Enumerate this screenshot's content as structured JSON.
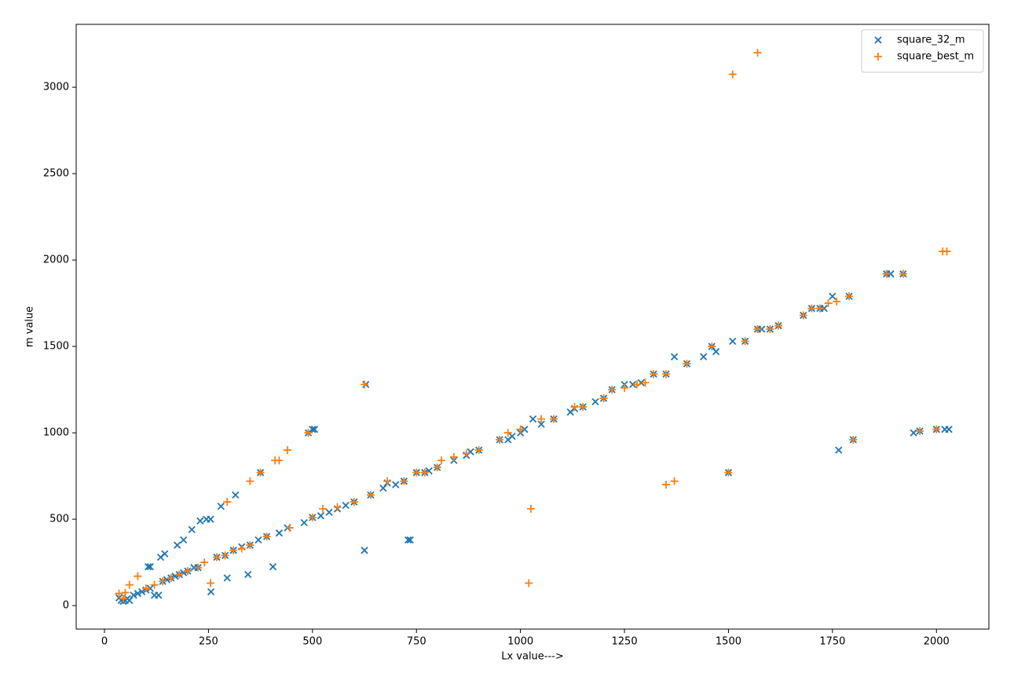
{
  "chart_data": {
    "type": "scatter",
    "xlabel": "Lx value--->",
    "ylabel": "m value",
    "xlim": [
      -68,
      2126
    ],
    "ylim": [
      -136,
      3364
    ],
    "xticks": [
      0,
      250,
      500,
      750,
      1000,
      1250,
      1500,
      1750,
      2000
    ],
    "yticks": [
      0,
      500,
      1000,
      1500,
      2000,
      2500,
      3000
    ],
    "grid": false,
    "legend": "upper right",
    "series": [
      {
        "name": "square_32_m",
        "color": "#1f77b4",
        "marker": "x",
        "x": [
          35,
          40,
          45,
          50,
          55,
          60,
          70,
          80,
          90,
          100,
          110,
          120,
          130,
          140,
          150,
          160,
          170,
          180,
          190,
          200,
          215,
          225,
          256,
          295,
          345,
          405,
          105,
          110,
          135,
          145,
          175,
          190,
          210,
          230,
          245,
          255,
          280,
          315,
          375,
          490,
          500,
          505,
          628,
          270,
          290,
          310,
          330,
          350,
          370,
          390,
          420,
          440,
          480,
          500,
          520,
          540,
          560,
          580,
          600,
          640,
          670,
          680,
          700,
          720,
          750,
          770,
          780,
          800,
          840,
          870,
          880,
          900,
          950,
          970,
          980,
          1000,
          1010,
          1030,
          1050,
          1080,
          1120,
          1130,
          1150,
          1180,
          1200,
          1220,
          1250,
          1270,
          1290,
          1320,
          1350,
          1370,
          1400,
          1440,
          1460,
          1470,
          1510,
          1540,
          1570,
          1580,
          1600,
          1620,
          1680,
          1700,
          1720,
          1730,
          1750,
          1790,
          1880,
          1890,
          1920,
          625,
          730,
          735,
          1500,
          1765,
          1800,
          1945,
          1960,
          2000,
          2020,
          2030
        ],
        "values": [
          45,
          30,
          25,
          30,
          40,
          30,
          60,
          70,
          80,
          90,
          100,
          60,
          60,
          140,
          150,
          160,
          170,
          180,
          190,
          200,
          220,
          220,
          80,
          160,
          180,
          225,
          225,
          225,
          280,
          300,
          350,
          380,
          440,
          490,
          500,
          500,
          575,
          640,
          770,
          1000,
          1020,
          1020,
          1280,
          280,
          290,
          320,
          340,
          350,
          380,
          400,
          420,
          450,
          480,
          510,
          520,
          540,
          560,
          580,
          600,
          640,
          680,
          710,
          700,
          720,
          770,
          770,
          780,
          800,
          840,
          870,
          890,
          900,
          960,
          960,
          980,
          1000,
          1020,
          1080,
          1050,
          1080,
          1120,
          1140,
          1150,
          1180,
          1200,
          1250,
          1280,
          1280,
          1290,
          1340,
          1340,
          1440,
          1400,
          1440,
          1500,
          1470,
          1530,
          1530,
          1600,
          1600,
          1600,
          1620,
          1680,
          1720,
          1720,
          1720,
          1790,
          1790,
          1920,
          1920,
          1920,
          320,
          380,
          380,
          770,
          900,
          960,
          1000,
          1010,
          1020,
          1020,
          1020
        ]
      },
      {
        "name": "square_best_m",
        "color": "#ff7f0e",
        "marker": "+",
        "x": [
          35,
          45,
          50,
          60,
          80,
          100,
          120,
          140,
          160,
          180,
          200,
          225,
          240,
          255,
          270,
          290,
          295,
          310,
          330,
          350,
          350,
          375,
          390,
          410,
          420,
          440,
          445,
          490,
          500,
          525,
          560,
          600,
          625,
          640,
          680,
          720,
          750,
          770,
          800,
          810,
          840,
          870,
          900,
          950,
          970,
          1000,
          1020,
          1025,
          1050,
          1080,
          1130,
          1150,
          1200,
          1220,
          1250,
          1280,
          1300,
          1320,
          1350,
          1350,
          1370,
          1400,
          1460,
          1500,
          1510,
          1540,
          1570,
          1570,
          1600,
          1620,
          1680,
          1700,
          1720,
          1740,
          1760,
          1790,
          1800,
          1880,
          1920,
          1960,
          2000,
          2015,
          2025
        ],
        "values": [
          70,
          40,
          75,
          120,
          170,
          100,
          120,
          140,
          160,
          180,
          200,
          220,
          250,
          130,
          280,
          290,
          600,
          320,
          330,
          350,
          720,
          770,
          400,
          840,
          840,
          900,
          450,
          1000,
          510,
          560,
          570,
          600,
          1280,
          640,
          720,
          720,
          770,
          770,
          800,
          840,
          860,
          880,
          900,
          960,
          1000,
          1020,
          130,
          560,
          1080,
          1080,
          1150,
          1150,
          1200,
          1250,
          1260,
          1280,
          1290,
          1340,
          1340,
          700,
          720,
          1400,
          1500,
          770,
          3075,
          1530,
          1600,
          3200,
          1600,
          1620,
          1680,
          1720,
          1720,
          1750,
          1760,
          1790,
          960,
          1920,
          1920,
          1010,
          1020,
          2050,
          2050
        ]
      }
    ]
  }
}
